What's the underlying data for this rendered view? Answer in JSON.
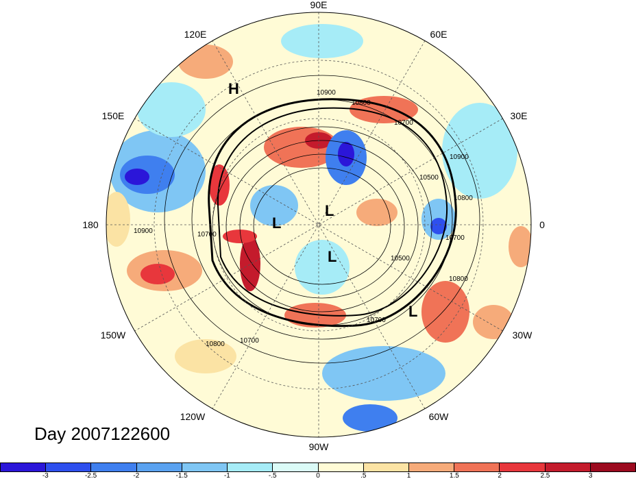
{
  "title": "Day 2007122600",
  "map": {
    "projection": "north-polar-stereographic",
    "longitude_labels": [
      {
        "text": "90E",
        "lon": 90
      },
      {
        "text": "60E",
        "lon": 60
      },
      {
        "text": "30E",
        "lon": 30
      },
      {
        "text": "0",
        "lon": 0
      },
      {
        "text": "30W",
        "lon": -30
      },
      {
        "text": "60W",
        "lon": -60
      },
      {
        "text": "90W",
        "lon": -90
      },
      {
        "text": "120W",
        "lon": -120
      },
      {
        "text": "150W",
        "lon": -150
      },
      {
        "text": "180",
        "lon": 180
      },
      {
        "text": "150E",
        "lon": 150
      },
      {
        "text": "120E",
        "lon": 120
      }
    ],
    "contour_labels": [
      "10900",
      "10800",
      "10700",
      "10500",
      "10900",
      "10800",
      "10700",
      "10500",
      "10900",
      "10800",
      "10700",
      "10700",
      "10800",
      "10700"
    ],
    "pressure_centers": [
      "H",
      "L",
      "L",
      "L",
      "L"
    ]
  },
  "colorbar": {
    "colors": [
      "#2b16d9",
      "#2e4fee",
      "#3f7fef",
      "#5aa2f0",
      "#7fc6f4",
      "#a6ecf7",
      "#dbfbf7",
      "#fffbd6",
      "#fbe3a4",
      "#f6ab7a",
      "#f07357",
      "#e8373c",
      "#c41b2c",
      "#9c0a1f"
    ],
    "labels": [
      "-3",
      "-2.5",
      "-2",
      "-1.5",
      "-1",
      "-.5",
      "0",
      ".5",
      "1",
      "1.5",
      "2",
      "2.5",
      "3"
    ]
  }
}
